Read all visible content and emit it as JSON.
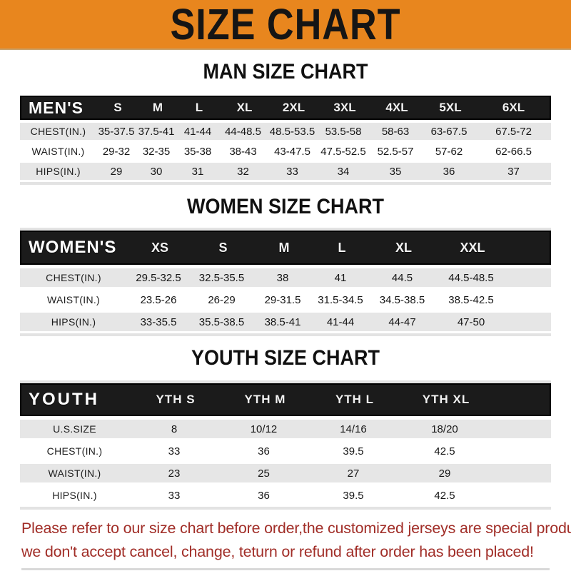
{
  "banner": {
    "title": "SIZE CHART",
    "bg_color": "#E8861E",
    "text_color": "#151515"
  },
  "sections": [
    {
      "heading": "MAN SIZE CHART",
      "header_label": "MEN'S",
      "columns": [
        "S",
        "M",
        "L",
        "XL",
        "2XL",
        "3XL",
        "4XL",
        "5XL",
        "6XL"
      ],
      "rows": [
        {
          "label": "CHEST(IN.)",
          "values": [
            "35-37.5",
            "37.5-41",
            "41-44",
            "44-48.5",
            "48.5-53.5",
            "53.5-58",
            "58-63",
            "63-67.5",
            "67.5-72"
          ]
        },
        {
          "label": "WAIST(IN.)",
          "values": [
            "29-32",
            "32-35",
            "35-38",
            "38-43",
            "43-47.5",
            "47.5-52.5",
            "52.5-57",
            "57-62",
            "62-66.5"
          ]
        },
        {
          "label": "HIPS(IN.)",
          "values": [
            "29",
            "30",
            "31",
            "32",
            "33",
            "34",
            "35",
            "36",
            "37"
          ]
        }
      ]
    },
    {
      "heading": "WOMEN SIZE CHART",
      "header_label": "WOMEN'S",
      "columns": [
        "XS",
        "S",
        "M",
        "L",
        "XL",
        "XXL"
      ],
      "rows": [
        {
          "label": "CHEST(IN.)",
          "values": [
            "29.5-32.5",
            "32.5-35.5",
            "38",
            "41",
            "44.5",
            "44.5-48.5"
          ]
        },
        {
          "label": "WAIST(IN.)",
          "values": [
            "23.5-26",
            "26-29",
            "29-31.5",
            "31.5-34.5",
            "34.5-38.5",
            "38.5-42.5"
          ]
        },
        {
          "label": "HIPS(IN.)",
          "values": [
            "33-35.5",
            "35.5-38.5",
            "38.5-41",
            "41-44",
            "44-47",
            "47-50"
          ]
        }
      ]
    },
    {
      "heading": "YOUTH SIZE CHART",
      "header_label": "YOUTH",
      "columns": [
        "YTH S",
        "YTH M",
        "YTH L",
        "YTH XL"
      ],
      "rows": [
        {
          "label": "U.S.SIZE",
          "values": [
            "8",
            "10/12",
            "14/16",
            "18/20"
          ]
        },
        {
          "label": "CHEST(IN.)",
          "values": [
            "33",
            "36",
            "39.5",
            "42.5"
          ]
        },
        {
          "label": "WAIST(IN.)",
          "values": [
            "23",
            "25",
            "27",
            "29"
          ]
        },
        {
          "label": "HIPS(IN.)",
          "values": [
            "33",
            "36",
            "39.5",
            "42.5"
          ]
        }
      ]
    }
  ],
  "disclaimer": {
    "line1": "Please refer to our size chart before order,the customized jerseys are special products,",
    "line2": "we don't accept cancel, change, teturn or refund after order has been placed!",
    "text_color": "#A12E28"
  },
  "style_colors": {
    "header_bar": "#1B1B1B",
    "row_gray": "#E6E6E6",
    "row_white": "#FFFFFF"
  }
}
